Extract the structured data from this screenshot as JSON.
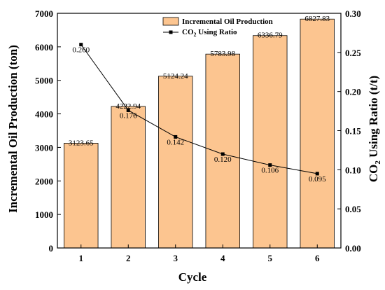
{
  "chart_data": {
    "type": "bar",
    "categories": [
      "1",
      "2",
      "3",
      "4",
      "5",
      "6"
    ],
    "xlabel": "Cycle",
    "series": [
      {
        "name": "Incremental Oil Production",
        "type": "bar",
        "axis": "left",
        "color": "#fcc590",
        "values": [
          3123.65,
          4222.94,
          5124.24,
          5783.98,
          6336.79,
          6827.83
        ],
        "labels": [
          "3123.65",
          "4222.94",
          "5124.24",
          "5783.98",
          "6336.79",
          "6827.83"
        ]
      },
      {
        "name_prefix": "CO",
        "name_sub": "2",
        "name_suffix": " Using Ratio",
        "type": "line",
        "axis": "right",
        "color": "#000000",
        "values": [
          0.26,
          0.176,
          0.142,
          0.12,
          0.106,
          0.095
        ],
        "labels": [
          "0.260",
          "0.176",
          "0.142",
          "0.120",
          "0.106",
          "0.095"
        ]
      }
    ],
    "y_left": {
      "label": "Incremental Oil Production (ton)",
      "range": [
        0,
        7000
      ],
      "ticks": [
        "0",
        "1000",
        "2000",
        "3000",
        "4000",
        "5000",
        "6000",
        "7000"
      ]
    },
    "y_right": {
      "label_prefix": "CO",
      "label_sub": "2",
      "label_suffix": " Using Ratio (t/t)",
      "range": [
        0,
        0.3
      ],
      "ticks": [
        "0.00",
        "0.05",
        "0.10",
        "0.15",
        "0.20",
        "0.25",
        "0.30"
      ]
    },
    "legend": "top-center",
    "grid": false
  }
}
